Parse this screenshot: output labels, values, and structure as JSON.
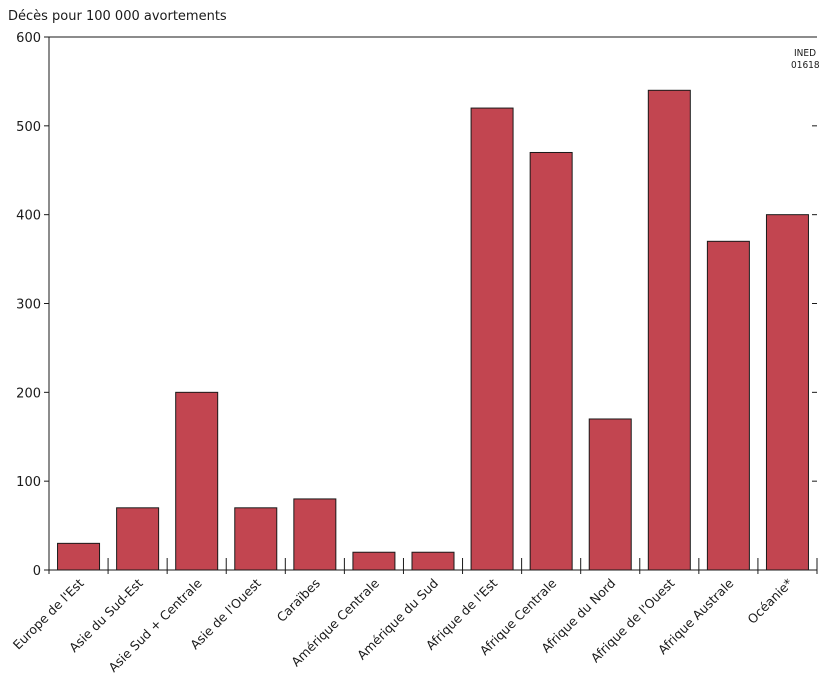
{
  "chart_data": {
    "type": "bar",
    "ylabel": "Décès pour 100 000 avortements",
    "source_mark": [
      "INED",
      "01618"
    ],
    "categories": [
      "Europe de l'Est",
      "Asie du Sud-Est",
      "Asie Sud + Centrale",
      "Asie de l'Ouest",
      "Caraïbes",
      "Amérique Centrale",
      "Amérique du Sud",
      "Afrique de l'Est",
      "Afrique Centrale",
      "Afrique du Nord",
      "Afrique de l'Ouest",
      "Afrique Australe",
      "Océanie*"
    ],
    "values": [
      30,
      70,
      200,
      70,
      80,
      20,
      20,
      520,
      470,
      170,
      540,
      370,
      400
    ],
    "ylim": [
      0,
      600
    ],
    "yticks": [
      0,
      100,
      200,
      300,
      400,
      500,
      600
    ],
    "bar_color": "#c24550",
    "grid": false
  }
}
